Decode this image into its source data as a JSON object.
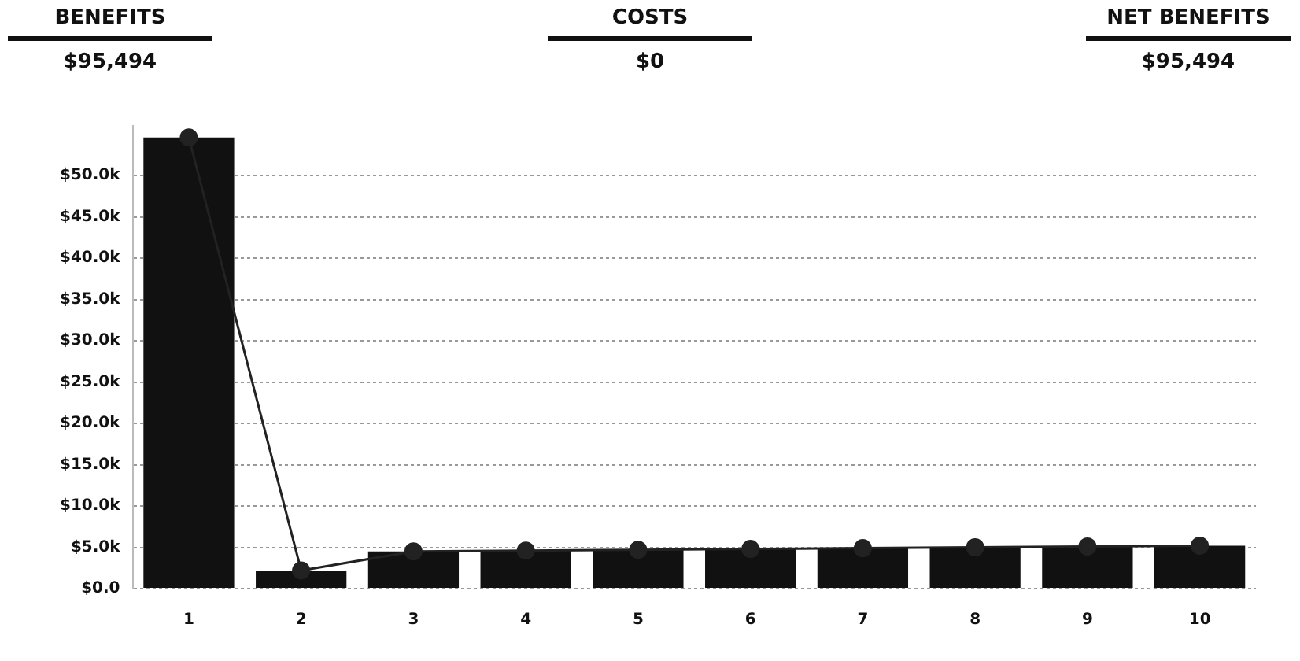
{
  "chart_data": {
    "type": "bar",
    "annotations": [
      "BENEFITS",
      "$95,494",
      "COSTS",
      "$0",
      "NET BENEFITS",
      "$95,494"
    ],
    "categories": [
      "1",
      "2",
      "3",
      "4",
      "5",
      "6",
      "7",
      "8",
      "9",
      "10"
    ],
    "series": [
      {
        "color": "#111111",
        "values": [
          54600,
          2200,
          4500,
          4600,
          4700,
          4800,
          4900,
          5000,
          5100,
          5200
        ]
      },
      {
        "type": "line",
        "color": "#222222",
        "marker": "circle",
        "values": [
          54600,
          2200,
          4500,
          4600,
          4700,
          4800,
          4900,
          5000,
          5100,
          5200
        ]
      }
    ],
    "yticks": [
      {
        "value": 0,
        "label": "$0.0"
      },
      {
        "value": 5000,
        "label": "$5.0k"
      },
      {
        "value": 10000,
        "label": "$10.0k"
      },
      {
        "value": 15000,
        "label": "$15.0k"
      },
      {
        "value": 20000,
        "label": "$20.0k"
      },
      {
        "value": 25000,
        "label": "$25.0k"
      },
      {
        "value": 30000,
        "label": "$30.0k"
      },
      {
        "value": 35000,
        "label": "$35.0k"
      },
      {
        "value": 40000,
        "label": "$40.0k"
      },
      {
        "value": 45000,
        "label": "$45.0k"
      },
      {
        "value": 50000,
        "label": "$50.0k"
      }
    ],
    "ylim": [
      0,
      56000
    ],
    "grid": "y",
    "legend": false
  }
}
